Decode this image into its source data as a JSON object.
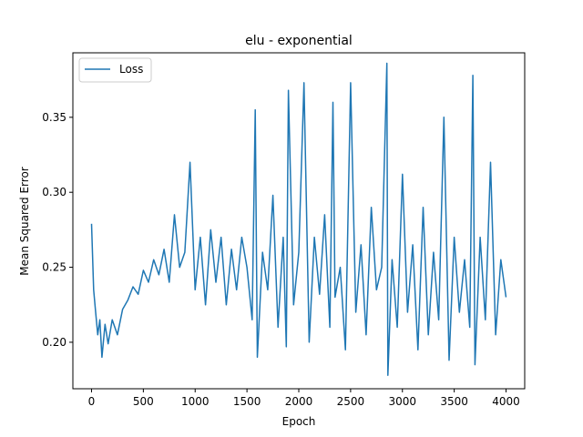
{
  "chart_data": {
    "type": "line",
    "title": "elu - exponential",
    "xlabel": "Epoch",
    "ylabel": "Mean Squared Error",
    "xlim": [
      -180,
      4180
    ],
    "ylim": [
      0.169,
      0.393
    ],
    "xticks": [
      0,
      500,
      1000,
      1500,
      2000,
      2500,
      3000,
      3500,
      4000
    ],
    "yticks": [
      0.2,
      0.25,
      0.3,
      0.35
    ],
    "xtick_labels": [
      "0",
      "500",
      "1000",
      "1500",
      "2000",
      "2500",
      "3000",
      "3500",
      "4000"
    ],
    "ytick_labels": [
      "0.20",
      "0.25",
      "0.30",
      "0.35"
    ],
    "grid": false,
    "legend": {
      "position": "top-left"
    },
    "series": [
      {
        "name": "Loss",
        "color": "#1f77b4",
        "x": [
          0,
          20,
          40,
          60,
          80,
          100,
          130,
          160,
          200,
          250,
          300,
          350,
          400,
          450,
          500,
          550,
          600,
          650,
          700,
          750,
          800,
          850,
          900,
          950,
          1000,
          1050,
          1100,
          1150,
          1200,
          1250,
          1300,
          1350,
          1400,
          1450,
          1500,
          1550,
          1580,
          1600,
          1650,
          1700,
          1750,
          1800,
          1850,
          1880,
          1900,
          1950,
          2000,
          2050,
          2100,
          2150,
          2200,
          2250,
          2300,
          2330,
          2350,
          2400,
          2450,
          2500,
          2550,
          2600,
          2650,
          2700,
          2750,
          2800,
          2850,
          2860,
          2900,
          2950,
          3000,
          3050,
          3100,
          3150,
          3200,
          3250,
          3300,
          3350,
          3400,
          3450,
          3500,
          3550,
          3600,
          3650,
          3680,
          3700,
          3750,
          3800,
          3850,
          3900,
          3950,
          4000
        ],
        "y": [
          0.279,
          0.235,
          0.22,
          0.205,
          0.215,
          0.19,
          0.212,
          0.199,
          0.215,
          0.205,
          0.222,
          0.228,
          0.237,
          0.232,
          0.248,
          0.24,
          0.255,
          0.245,
          0.262,
          0.24,
          0.285,
          0.25,
          0.26,
          0.32,
          0.235,
          0.27,
          0.225,
          0.275,
          0.24,
          0.27,
          0.225,
          0.262,
          0.235,
          0.27,
          0.25,
          0.215,
          0.355,
          0.19,
          0.26,
          0.235,
          0.298,
          0.21,
          0.27,
          0.197,
          0.368,
          0.225,
          0.26,
          0.373,
          0.2,
          0.27,
          0.232,
          0.285,
          0.21,
          0.36,
          0.23,
          0.25,
          0.195,
          0.373,
          0.22,
          0.265,
          0.205,
          0.29,
          0.235,
          0.25,
          0.386,
          0.178,
          0.255,
          0.21,
          0.312,
          0.22,
          0.265,
          0.195,
          0.29,
          0.205,
          0.26,
          0.215,
          0.35,
          0.188,
          0.27,
          0.22,
          0.255,
          0.21,
          0.378,
          0.185,
          0.27,
          0.215,
          0.32,
          0.205,
          0.255,
          0.23
        ]
      }
    ]
  }
}
